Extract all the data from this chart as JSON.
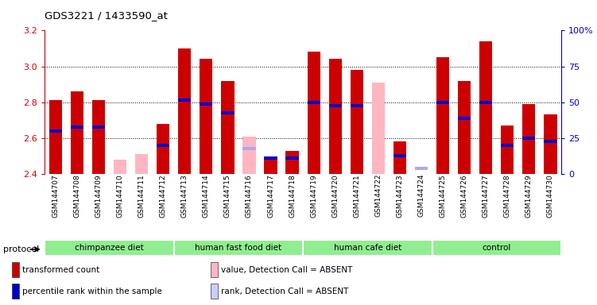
{
  "title": "GDS3221 / 1433590_at",
  "samples": [
    "GSM144707",
    "GSM144708",
    "GSM144709",
    "GSM144710",
    "GSM144711",
    "GSM144712",
    "GSM144713",
    "GSM144714",
    "GSM144715",
    "GSM144716",
    "GSM144717",
    "GSM144718",
    "GSM144719",
    "GSM144720",
    "GSM144721",
    "GSM144722",
    "GSM144723",
    "GSM144724",
    "GSM144725",
    "GSM144726",
    "GSM144727",
    "GSM144728",
    "GSM144729",
    "GSM144730"
  ],
  "groups": [
    {
      "label": "chimpanzee diet",
      "start": 0,
      "end": 5
    },
    {
      "label": "human fast food diet",
      "start": 6,
      "end": 11
    },
    {
      "label": "human cafe diet",
      "start": 12,
      "end": 17
    },
    {
      "label": "control",
      "start": 18,
      "end": 23
    }
  ],
  "red_values": [
    2.81,
    2.86,
    2.81,
    null,
    null,
    2.68,
    3.1,
    3.04,
    2.92,
    null,
    2.49,
    2.53,
    3.08,
    3.04,
    2.98,
    null,
    2.58,
    null,
    3.05,
    2.92,
    3.14,
    2.67,
    2.79,
    2.73
  ],
  "pink_values": [
    null,
    null,
    null,
    2.48,
    2.51,
    null,
    null,
    null,
    null,
    2.61,
    null,
    null,
    null,
    null,
    null,
    2.91,
    null,
    null,
    null,
    null,
    null,
    null,
    null,
    null
  ],
  "blue_markers": [
    2.64,
    2.66,
    2.66,
    null,
    null,
    2.56,
    2.81,
    2.79,
    2.74,
    null,
    2.49,
    2.49,
    2.8,
    2.78,
    2.78,
    null,
    2.5,
    null,
    2.8,
    2.71,
    2.8,
    2.56,
    2.6,
    2.58
  ],
  "lilac_markers": [
    null,
    null,
    null,
    null,
    null,
    null,
    null,
    null,
    null,
    2.54,
    null,
    null,
    null,
    null,
    null,
    null,
    null,
    2.43,
    null,
    null,
    null,
    null,
    null,
    null
  ],
  "ylim_left": [
    2.4,
    3.2
  ],
  "yticks_left": [
    2.4,
    2.6,
    2.8,
    3.0,
    3.2
  ],
  "yticks_right": [
    0,
    25,
    50,
    75,
    100
  ],
  "ytick_labels_right": [
    "0",
    "25",
    "50",
    "75",
    "100%"
  ],
  "bar_width": 0.6,
  "bar_bottom": 2.4,
  "left_axis_color": "#cc0000",
  "right_axis_color": "#0000cc",
  "group_color": "#90ee90",
  "plot_bg": "#f0f0f0",
  "legend_items": [
    {
      "color": "#cc0000",
      "label": "transformed count"
    },
    {
      "color": "#0000cc",
      "label": "percentile rank within the sample"
    },
    {
      "color": "#ffb6c1",
      "label": "value, Detection Call = ABSENT"
    },
    {
      "color": "#ccccff",
      "label": "rank, Detection Call = ABSENT"
    }
  ],
  "protocol_label": "protocol"
}
